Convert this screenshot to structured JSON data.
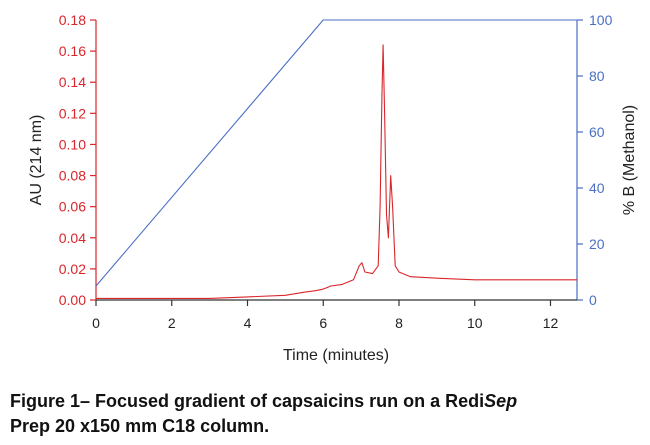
{
  "chart_data": {
    "type": "line",
    "title": "",
    "xlabel": "Time (minutes)",
    "ylabel_left": "AU (214 nm)",
    "ylabel_right": "% B (Methanol)",
    "xlim": [
      0,
      12.7
    ],
    "ylim_left": [
      0,
      0.18
    ],
    "ylim_right": [
      0,
      100
    ],
    "x_ticks": [
      "0",
      "2",
      "4",
      "6",
      "8",
      "10",
      "12"
    ],
    "y_left_ticks": [
      "0.00",
      "0.02",
      "0.04",
      "0.06",
      "0.08",
      "0.10",
      "0.12",
      "0.14",
      "0.16",
      "0.18"
    ],
    "y_right_ticks": [
      "0",
      "20",
      "40",
      "60",
      "80",
      "100"
    ],
    "grid": false,
    "series": [
      {
        "axis": "left",
        "color": "#d9262b",
        "x": [
          0,
          1,
          2,
          3,
          4,
          5,
          5.5,
          5.8,
          6.0,
          6.2,
          6.5,
          6.8,
          6.95,
          7.02,
          7.1,
          7.3,
          7.45,
          7.5,
          7.55,
          7.58,
          7.62,
          7.67,
          7.72,
          7.78,
          7.83,
          7.9,
          8.0,
          8.3,
          9,
          10,
          11,
          12,
          12.7
        ],
        "y": [
          0.001,
          0.001,
          0.001,
          0.001,
          0.002,
          0.003,
          0.005,
          0.006,
          0.007,
          0.009,
          0.01,
          0.013,
          0.022,
          0.024,
          0.018,
          0.017,
          0.022,
          0.06,
          0.13,
          0.164,
          0.12,
          0.055,
          0.04,
          0.08,
          0.06,
          0.022,
          0.018,
          0.015,
          0.014,
          0.013,
          0.013,
          0.013,
          0.013
        ]
      },
      {
        "axis": "right",
        "color": "#4a6fc4",
        "x": [
          0,
          6,
          12.7
        ],
        "y": [
          5,
          100,
          100
        ]
      }
    ]
  },
  "caption": {
    "line1_a": "Figure 1– Focused gradient of capsaicins run on a Redi",
    "line1_b": "Sep",
    "line2": "Prep 20 x150 mm C18 column."
  }
}
